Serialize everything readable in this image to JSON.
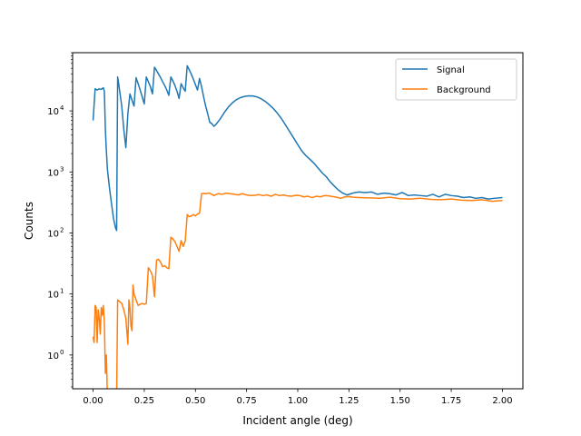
{
  "chart_data": {
    "type": "line",
    "title": "",
    "xlabel": "Incident angle (deg)",
    "ylabel": "Counts",
    "xlim": [
      -0.1,
      2.1
    ],
    "ylim": [
      0.28,
      90000
    ],
    "yscale": "log",
    "grid": false,
    "legend_position": "top-right",
    "x_ticks": [
      0.0,
      0.25,
      0.5,
      0.75,
      1.0,
      1.25,
      1.5,
      1.75,
      2.0
    ],
    "x_tick_labels": [
      "0.00",
      "0.25",
      "0.50",
      "0.75",
      "1.00",
      "1.25",
      "1.50",
      "1.75",
      "2.00"
    ],
    "y_ticks": [
      1,
      10,
      100,
      1000,
      10000
    ],
    "y_tick_labels": [
      "10",
      "10",
      "10",
      "10",
      "10"
    ],
    "y_tick_exponents": [
      "0",
      "1",
      "2",
      "3",
      "4"
    ],
    "series": [
      {
        "name": "Signal",
        "color": "#1f77b4",
        "x": [
          0.0,
          0.01,
          0.02,
          0.03,
          0.04,
          0.05,
          0.055,
          0.06,
          0.065,
          0.07,
          0.08,
          0.09,
          0.1,
          0.11,
          0.115,
          0.12,
          0.125,
          0.13,
          0.14,
          0.15,
          0.16,
          0.17,
          0.18,
          0.19,
          0.2,
          0.21,
          0.22,
          0.23,
          0.24,
          0.25,
          0.26,
          0.27,
          0.28,
          0.29,
          0.3,
          0.31,
          0.32,
          0.33,
          0.34,
          0.35,
          0.36,
          0.37,
          0.38,
          0.39,
          0.4,
          0.41,
          0.42,
          0.43,
          0.44,
          0.45,
          0.46,
          0.47,
          0.48,
          0.49,
          0.5,
          0.51,
          0.52,
          0.53,
          0.54,
          0.55,
          0.56,
          0.57,
          0.58,
          0.59,
          0.6,
          0.62,
          0.64,
          0.66,
          0.68,
          0.7,
          0.72,
          0.74,
          0.76,
          0.78,
          0.8,
          0.82,
          0.84,
          0.86,
          0.88,
          0.9,
          0.92,
          0.94,
          0.96,
          0.98,
          1.0,
          1.02,
          1.04,
          1.06,
          1.08,
          1.1,
          1.12,
          1.14,
          1.16,
          1.18,
          1.2,
          1.22,
          1.24,
          1.26,
          1.28,
          1.3,
          1.33,
          1.36,
          1.39,
          1.42,
          1.45,
          1.48,
          1.51,
          1.54,
          1.57,
          1.6,
          1.63,
          1.66,
          1.69,
          1.72,
          1.75,
          1.78,
          1.81,
          1.84,
          1.87,
          1.9,
          1.93,
          1.96,
          2.0
        ],
        "y": [
          7000,
          23000,
          22000,
          23000,
          22500,
          24000,
          21000,
          5000,
          2200,
          1100,
          550,
          300,
          170,
          120,
          110,
          36000,
          28000,
          21000,
          12000,
          5000,
          2500,
          9000,
          19000,
          15000,
          12000,
          35000,
          28000,
          22000,
          17000,
          13000,
          36000,
          30000,
          25000,
          19000,
          52000,
          46000,
          40000,
          35000,
          30000,
          26000,
          22000,
          18000,
          36000,
          31000,
          26000,
          21000,
          16000,
          28000,
          24000,
          21000,
          55000,
          47000,
          40000,
          33000,
          27000,
          22000,
          34000,
          25000,
          17000,
          12000,
          9000,
          6500,
          6200,
          5600,
          6000,
          7300,
          9300,
          11500,
          13500,
          15300,
          16500,
          17300,
          17700,
          17600,
          17000,
          15900,
          14400,
          12700,
          11000,
          9200,
          7500,
          5900,
          4600,
          3600,
          2800,
          2200,
          1850,
          1600,
          1380,
          1150,
          960,
          830,
          680,
          580,
          500,
          450,
          420,
          440,
          460,
          470,
          460,
          470,
          430,
          450,
          440,
          420,
          460,
          410,
          420,
          410,
          400,
          430,
          390,
          430,
          410,
          400,
          380,
          390,
          370,
          380,
          360,
          370,
          380
        ]
      },
      {
        "name": "Background",
        "color": "#ff7f0e",
        "x": [
          0.0,
          0.005,
          0.01,
          0.015,
          0.02,
          0.025,
          0.03,
          0.035,
          0.04,
          0.045,
          0.05,
          0.055,
          0.06,
          0.065,
          0.07,
          0.075,
          0.08,
          0.09,
          0.1,
          0.11,
          0.115,
          0.12,
          0.13,
          0.14,
          0.15,
          0.16,
          0.17,
          0.175,
          0.18,
          0.185,
          0.19,
          0.195,
          0.2,
          0.21,
          0.22,
          0.23,
          0.24,
          0.25,
          0.26,
          0.27,
          0.28,
          0.29,
          0.3,
          0.31,
          0.32,
          0.33,
          0.34,
          0.35,
          0.36,
          0.37,
          0.38,
          0.39,
          0.4,
          0.41,
          0.42,
          0.43,
          0.44,
          0.45,
          0.46,
          0.47,
          0.48,
          0.49,
          0.5,
          0.51,
          0.52,
          0.53,
          0.54,
          0.55,
          0.57,
          0.59,
          0.61,
          0.63,
          0.65,
          0.67,
          0.69,
          0.71,
          0.73,
          0.75,
          0.77,
          0.79,
          0.81,
          0.83,
          0.85,
          0.87,
          0.89,
          0.91,
          0.93,
          0.95,
          0.97,
          0.99,
          1.01,
          1.03,
          1.05,
          1.07,
          1.09,
          1.11,
          1.13,
          1.15,
          1.17,
          1.19,
          1.21,
          1.23,
          1.25,
          1.27,
          1.3,
          1.35,
          1.4,
          1.45,
          1.5,
          1.55,
          1.6,
          1.65,
          1.7,
          1.75,
          1.8,
          1.85,
          1.9,
          1.95,
          2.0
        ],
        "y": [
          2.0,
          1.6,
          6.5,
          6.0,
          1.6,
          5.5,
          4.0,
          2.2,
          6.0,
          4.5,
          6.5,
          3.5,
          0.5,
          1.0,
          0.2,
          0.2,
          0.2,
          0.2,
          0.2,
          0.2,
          0.2,
          8.0,
          7.5,
          7.0,
          5.5,
          4.0,
          1.5,
          8.0,
          6.0,
          3.0,
          2.5,
          14.0,
          10.0,
          8.0,
          6.5,
          6.8,
          7.0,
          6.8,
          7.0,
          27.0,
          24.0,
          20.0,
          9.0,
          36.0,
          37.0,
          33.0,
          28.0,
          29.0,
          27.0,
          26.0,
          85.0,
          80.0,
          72.0,
          60.0,
          50.0,
          75.0,
          60.0,
          73.0,
          200.0,
          185.0,
          190.0,
          200.0,
          190.0,
          205.0,
          210.0,
          440.0,
          445.0,
          440.0,
          450.0,
          410.0,
          440.0,
          430.0,
          450.0,
          440.0,
          430.0,
          420.0,
          440.0,
          420.0,
          410.0,
          415.0,
          425.0,
          410.0,
          420.0,
          400.0,
          430.0,
          410.0,
          420.0,
          405.0,
          400.0,
          415.0,
          410.0,
          390.0,
          400.0,
          380.0,
          400.0,
          390.0,
          410.0,
          405.0,
          395.0,
          385.0,
          370.0,
          390.0,
          395.0,
          385.0,
          380.0,
          375.0,
          370.0,
          385.0,
          365.0,
          360.0,
          370.0,
          355.0,
          350.0,
          360.0,
          345.0,
          340.0,
          350.0,
          330.0,
          340.0
        ]
      }
    ]
  }
}
